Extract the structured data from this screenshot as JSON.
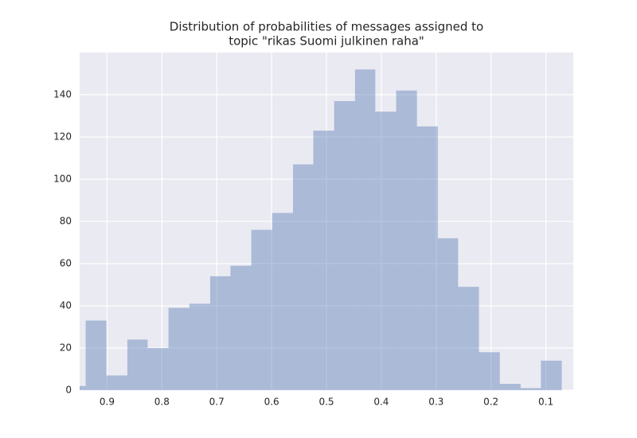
{
  "chart_data": {
    "type": "histogram",
    "title": [
      "Distribution of probabilities of messages assigned to",
      "topic \"rikas Suomi julkinen raha\""
    ],
    "bins": [
      0.071,
      0.109,
      0.146,
      0.184,
      0.222,
      0.26,
      0.297,
      0.335,
      0.373,
      0.411,
      0.448,
      0.486,
      0.524,
      0.561,
      0.599,
      0.637,
      0.675,
      0.712,
      0.75,
      0.788,
      0.826,
      0.863,
      0.901,
      0.939,
      0.977
    ],
    "values": [
      14,
      1,
      3,
      18,
      49,
      72,
      125,
      142,
      132,
      152,
      137,
      123,
      107,
      84,
      76,
      59,
      54,
      41,
      39,
      20,
      24,
      7,
      33,
      2
    ],
    "color": "#4c72b0",
    "alpha": 0.4,
    "xlim": [
      0.95,
      0.05
    ],
    "xticks": [
      0.9,
      0.8,
      0.7,
      0.6,
      0.5,
      0.4,
      0.3,
      0.2,
      0.1
    ],
    "ylim": [
      0,
      160
    ],
    "yticks": [
      0,
      20,
      40,
      60,
      80,
      100,
      120,
      140
    ],
    "grid": true,
    "background": "#eaeaf2"
  }
}
